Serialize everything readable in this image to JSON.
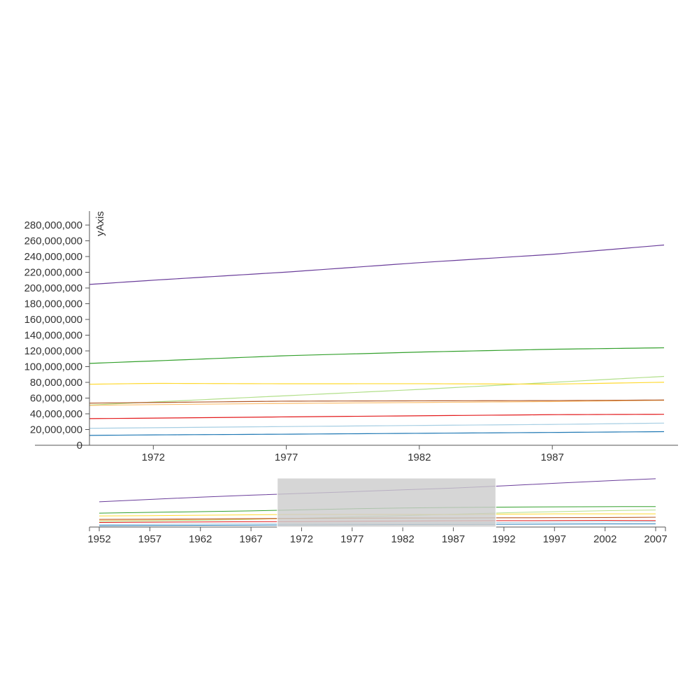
{
  "chart_data": {
    "type": "line",
    "title": "",
    "xlabel": "",
    "ylabel": "yAxis",
    "grid": false,
    "focus": {
      "xlim": [
        1969.6,
        1991.2
      ],
      "ylim": [
        0,
        285000000
      ],
      "x_ticks": [
        "1972",
        "1977",
        "1982",
        "1987"
      ],
      "y_ticks": [
        "0",
        "20,000,000",
        "40,000,000",
        "60,000,000",
        "80,000,000",
        "100,000,000",
        "120,000,000",
        "140,000,000",
        "160,000,000",
        "180,000,000",
        "200,000,000",
        "220,000,000",
        "240,000,000",
        "260,000,000",
        "280,000,000"
      ]
    },
    "context": {
      "xlim": [
        1952,
        2007
      ],
      "x_ticks": [
        "1952",
        "1957",
        "1962",
        "1967",
        "1972",
        "1977",
        "1982",
        "1987",
        "1992",
        "1997",
        "2002",
        "2007"
      ],
      "brush_range": [
        1969.6,
        1991.2
      ]
    },
    "x": [
      1952,
      1957,
      1962,
      1967,
      1972,
      1977,
      1982,
      1987,
      1992,
      1997,
      2002,
      2007
    ],
    "series": [
      {
        "color": "#6a3d9a",
        "values": [
          157500000,
          171900000,
          186500000,
          198700000,
          209900000,
          220200000,
          232200000,
          242800000,
          256900000,
          272900000,
          287700000,
          301100000
        ]
      },
      {
        "color": "#33a02c",
        "values": [
          86500000,
          91600000,
          95800000,
          100800000,
          107200000,
          113900000,
          118500000,
          122100000,
          124300000,
          125900000,
          127100000,
          127500000
        ]
      },
      {
        "color": "#b2df8a",
        "values": [
          35000000,
          38000000,
          42000000,
          47000000,
          55000000,
          63000000,
          71000000,
          80000000,
          89000000,
          96000000,
          102000000,
          106000000
        ]
      },
      {
        "color": "#ffd92f",
        "values": [
          69100000,
          71000000,
          73700000,
          76400000,
          78700000,
          78200000,
          78300000,
          77700000,
          80600000,
          82000000,
          82300000,
          82400000
        ]
      },
      {
        "color": "#fdbf6f",
        "values": [
          42500000,
          44300000,
          47100000,
          49600000,
          51700000,
          53200000,
          54400000,
          55600000,
          57400000,
          58600000,
          59700000,
          61100000
        ]
      },
      {
        "color": "#b15928",
        "values": [
          47700000,
          49200000,
          50800000,
          52700000,
          54400000,
          56100000,
          56500000,
          56800000,
          57700000,
          58100000,
          59100000,
          60800000
        ]
      },
      {
        "color": "#e31a1c",
        "values": [
          28300000,
          29900000,
          31500000,
          33200000,
          34500000,
          36100000,
          37500000,
          38900000,
          39500000,
          40400000,
          41200000,
          40400000
        ]
      },
      {
        "color": "#a6cee3",
        "values": [
          14800000,
          17000000,
          18800000,
          20700000,
          22300000,
          23800000,
          25200000,
          26500000,
          28500000,
          30300000,
          31900000,
          33400000
        ]
      },
      {
        "color": "#1f78b4",
        "values": [
          8700000,
          9600000,
          10800000,
          11900000,
          13200000,
          14100000,
          15200000,
          16300000,
          17500000,
          18600000,
          19500000,
          20400000
        ]
      }
    ]
  }
}
